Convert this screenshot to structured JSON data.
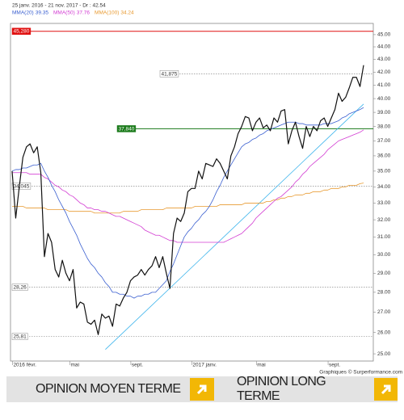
{
  "chart_data": {
    "type": "line",
    "title": "25 janv. 2016 - 21 nov. 2017 - Dr : 42.54",
    "log_scale": true,
    "grid": false,
    "categories": [
      null,
      "2016 févr.",
      null,
      null,
      null,
      null,
      null,
      null,
      null,
      null,
      null,
      null,
      null,
      null,
      null,
      null,
      null,
      "mai",
      null,
      null,
      null,
      null,
      null,
      null,
      null,
      null,
      null,
      null,
      null,
      null,
      null,
      null,
      null,
      null,
      "sept.",
      null,
      null,
      null,
      null,
      null,
      null,
      null,
      null,
      null,
      null,
      null,
      null,
      null,
      null,
      null,
      null,
      "2017 janv.",
      null,
      null,
      null,
      null,
      null,
      null,
      null,
      null,
      null,
      null,
      null,
      null,
      null,
      null,
      null,
      null,
      null,
      "mai",
      null,
      null,
      null,
      null,
      null,
      null,
      null,
      null,
      null,
      null,
      null,
      null,
      null,
      null,
      null,
      null,
      null,
      null,
      null,
      "sept.",
      null,
      null,
      null,
      null,
      null,
      null,
      null,
      null,
      null
    ],
    "series": [
      {
        "color": "#111111",
        "values": [
          35.0,
          32.1,
          34.0,
          35.9,
          36.6,
          36.8,
          36.2,
          36.6,
          34.9,
          29.9,
          31.2,
          30.7,
          29.2,
          28.8,
          29.7,
          29.0,
          28.6,
          29.2,
          27.2,
          27.5,
          27.4,
          26.5,
          26.4,
          26.6,
          25.9,
          26.9,
          26.7,
          26.8,
          26.3,
          27.4,
          27.3,
          27.7,
          28.0,
          28.6,
          28.8,
          28.9,
          29.2,
          28.9,
          29.2,
          29.4,
          29.9,
          29.3,
          29.9,
          29.0,
          28.2,
          31.2,
          32.1,
          31.9,
          32.4,
          33.7,
          33.9,
          33.9,
          35.0,
          34.5,
          35.5,
          35.4,
          35.3,
          35.8,
          35.5,
          35.0,
          34.5,
          36.0,
          36.6,
          37.5,
          38.0,
          38.7,
          38.6,
          37.7,
          38.3,
          38.6,
          37.9,
          38.1,
          37.7,
          38.6,
          38.3,
          39.1,
          39.2,
          36.8,
          37.7,
          38.3,
          37.3,
          36.5,
          38.0,
          37.3,
          38.0,
          37.7,
          38.4,
          38.6,
          38.0,
          38.6,
          39.2,
          40.4,
          39.8,
          40.1,
          40.8,
          41.6,
          41.6,
          40.9,
          42.54
        ]
      },
      {
        "name": "MMA(20)",
        "last": 39.35,
        "color": "#3a5fd0",
        "values": [
          35.0,
          35.1,
          35.1,
          35.2,
          35.2,
          35.3,
          35.4,
          35.4,
          35.5,
          35.0,
          34.6,
          34.1,
          33.7,
          33.2,
          32.8,
          32.4,
          31.9,
          31.5,
          31.1,
          30.6,
          30.2,
          29.8,
          29.5,
          29.3,
          29.0,
          28.8,
          28.5,
          28.3,
          28.0,
          28.0,
          27.9,
          27.9,
          27.8,
          27.8,
          27.7,
          27.8,
          27.8,
          27.9,
          27.9,
          28.0,
          28.0,
          28.2,
          28.4,
          28.6,
          29.1,
          29.5,
          30.0,
          30.5,
          31.0,
          31.3,
          31.5,
          31.8,
          32.0,
          32.3,
          32.5,
          32.8,
          33.2,
          33.7,
          34.1,
          34.6,
          35.0,
          35.4,
          35.8,
          36.2,
          36.6,
          36.8,
          36.9,
          37.1,
          37.2,
          37.4,
          37.5,
          37.7,
          37.8,
          37.9,
          38.0,
          38.1,
          38.2,
          38.3,
          38.3,
          38.3,
          38.2,
          38.2,
          38.1,
          38.1,
          38.1,
          38.1,
          38.1,
          38.2,
          38.2,
          38.2,
          38.3,
          38.4,
          38.6,
          38.7,
          38.9,
          39.0,
          39.1,
          39.2,
          39.35
        ]
      },
      {
        "name": "MMA(50)",
        "last": 37.76,
        "color": "#d23cd2",
        "values": [
          34.9,
          34.9,
          34.9,
          34.9,
          34.9,
          34.8,
          34.8,
          34.8,
          34.8,
          34.6,
          34.5,
          34.3,
          34.1,
          34.0,
          33.8,
          33.7,
          33.5,
          33.4,
          33.2,
          33.0,
          32.9,
          32.7,
          32.7,
          32.6,
          32.6,
          32.5,
          32.5,
          32.4,
          32.3,
          32.2,
          32.2,
          32.1,
          32.0,
          31.9,
          31.8,
          31.7,
          31.6,
          31.4,
          31.3,
          31.2,
          31.1,
          31.1,
          31.0,
          30.9,
          30.8,
          30.8,
          30.7,
          30.7,
          30.7,
          30.7,
          30.7,
          30.7,
          30.7,
          30.7,
          30.7,
          30.7,
          30.7,
          30.7,
          30.7,
          30.7,
          30.8,
          30.9,
          31.0,
          31.1,
          31.2,
          31.4,
          31.6,
          31.8,
          32.1,
          32.3,
          32.5,
          32.7,
          32.9,
          33.1,
          33.3,
          33.4,
          33.6,
          33.8,
          34.0,
          34.3,
          34.5,
          34.8,
          35.0,
          35.3,
          35.5,
          35.7,
          35.9,
          36.1,
          36.4,
          36.6,
          36.8,
          37.0,
          37.1,
          37.2,
          37.3,
          37.4,
          37.5,
          37.6,
          37.76
        ]
      },
      {
        "name": "MMA(100)",
        "last": 34.24,
        "color": "#e89a30",
        "values": [
          32.8,
          32.8,
          32.8,
          32.8,
          32.7,
          32.7,
          32.7,
          32.7,
          32.7,
          32.7,
          32.6,
          32.6,
          32.6,
          32.6,
          32.6,
          32.6,
          32.5,
          32.5,
          32.5,
          32.5,
          32.5,
          32.5,
          32.5,
          32.4,
          32.4,
          32.4,
          32.4,
          32.4,
          32.4,
          32.4,
          32.4,
          32.5,
          32.5,
          32.5,
          32.5,
          32.5,
          32.6,
          32.6,
          32.6,
          32.6,
          32.6,
          32.6,
          32.6,
          32.7,
          32.7,
          32.7,
          32.7,
          32.7,
          32.7,
          32.7,
          32.7,
          32.8,
          32.8,
          32.8,
          32.8,
          32.8,
          32.8,
          32.8,
          32.9,
          32.9,
          32.9,
          32.9,
          32.9,
          32.9,
          32.9,
          33.0,
          33.0,
          33.0,
          33.0,
          33.0,
          33.0,
          33.1,
          33.1,
          33.2,
          33.2,
          33.3,
          33.3,
          33.4,
          33.4,
          33.5,
          33.5,
          33.5,
          33.6,
          33.6,
          33.7,
          33.7,
          33.7,
          33.8,
          33.8,
          33.9,
          33.9,
          33.9,
          34.0,
          34.0,
          34.1,
          34.1,
          34.1,
          34.2,
          34.24
        ]
      }
    ],
    "trend_line": {
      "color": "#3cb4ec",
      "x": [
        26,
        98
      ],
      "values": [
        25.2,
        39.6
      ]
    },
    "levels": [
      {
        "value": 45.28,
        "label": "45,280",
        "color": "#e01010",
        "style": "solid"
      },
      {
        "value": 41.875,
        "label": "41,875",
        "color": "#777777",
        "style": "dashed"
      },
      {
        "value": 37.84,
        "label": "37,840",
        "color": "#1a7a1a",
        "style": "solid"
      },
      {
        "value": 34.045,
        "label": "34,045",
        "color": "#777777",
        "style": "dashed"
      },
      {
        "value": 28.26,
        "label": "28,26",
        "color": "#777777",
        "style": "dashed"
      },
      {
        "value": 25.81,
        "label": "25,81",
        "color": "#777777",
        "style": "dashed"
      }
    ],
    "ylim": [
      24.67,
      45.94
    ],
    "yticks": [
      {
        "value": 25,
        "label": "25.00"
      },
      {
        "value": 26,
        "label": "26.00"
      },
      {
        "value": 27,
        "label": "27.00"
      },
      {
        "value": 28,
        "label": "28.00"
      },
      {
        "value": 29,
        "label": "29.00"
      },
      {
        "value": 30,
        "label": "30.00"
      },
      {
        "value": 31,
        "label": "31.00"
      },
      {
        "value": 32,
        "label": "32.00"
      },
      {
        "value": 33,
        "label": "33.00"
      },
      {
        "value": 34,
        "label": "34.00"
      },
      {
        "value": 35,
        "label": "35.00"
      },
      {
        "value": 36,
        "label": "36.00"
      },
      {
        "value": 37,
        "label": "37.00"
      },
      {
        "value": 38,
        "label": "38.00"
      },
      {
        "value": 39,
        "label": "39.00"
      },
      {
        "value": 40,
        "label": "40.00"
      },
      {
        "value": 41,
        "label": "41.00"
      },
      {
        "value": 42,
        "label": "42.00"
      },
      {
        "value": 43,
        "label": "43.00"
      },
      {
        "value": 44,
        "label": "44.00"
      },
      {
        "value": 45,
        "label": "45.00"
      }
    ]
  },
  "footer": "Graphiques © Surperformance.com",
  "buttons": [
    "OPINION MOYEN TERME",
    "OPINION LONG TERME"
  ]
}
